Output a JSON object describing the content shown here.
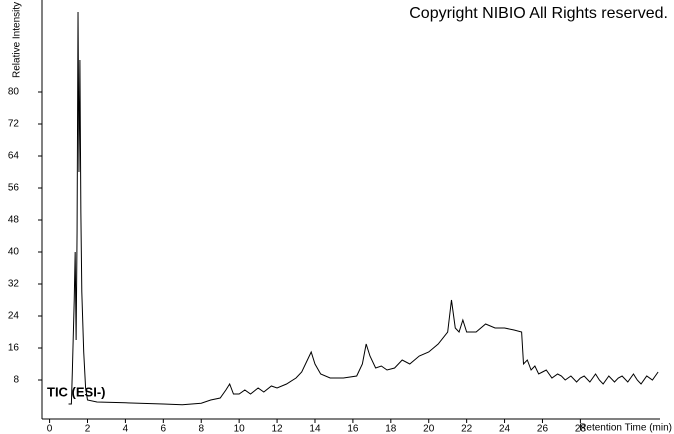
{
  "chart_data": {
    "type": "line",
    "annotation": "TIC (ESI-)",
    "copyright": "Copyright NIBIO All Rights reserved.",
    "xlabel": "Retention Time (min)",
    "ylabel": "Relative Intensity",
    "color": "#000000",
    "xlim": [
      -0.4,
      32.2
    ],
    "ylim": [
      -1.75,
      101.75
    ],
    "xticks": [
      0,
      2,
      4,
      6,
      8,
      10,
      12,
      14,
      16,
      18,
      20,
      22,
      24,
      26,
      28
    ],
    "yticks": [
      8,
      16,
      24,
      32,
      40,
      48,
      56,
      64,
      72,
      80
    ],
    "x": [
      1.0,
      1.15,
      1.2,
      1.3,
      1.35,
      1.4,
      1.45,
      1.5,
      1.55,
      1.6,
      1.65,
      1.7,
      1.8,
      1.9,
      2.0,
      2.5,
      4,
      6,
      7,
      8,
      8.5,
      9,
      9.3,
      9.5,
      9.7,
      10,
      10.3,
      10.6,
      11,
      11.3,
      11.7,
      12,
      12.5,
      13,
      13.3,
      13.6,
      13.8,
      14,
      14.3,
      14.8,
      15.5,
      16.2,
      16.5,
      16.7,
      16.9,
      17.2,
      17.5,
      17.8,
      18.2,
      18.6,
      19,
      19.5,
      20,
      20.5,
      21,
      21.2,
      21.4,
      21.6,
      21.8,
      22,
      22.5,
      23,
      23.5,
      24,
      24.5,
      24.9,
      25.0,
      25.2,
      25.4,
      25.6,
      25.8,
      26.0,
      26.2,
      26.5,
      26.8,
      27.0,
      27.2,
      27.5,
      27.8,
      28.0,
      28.2,
      28.5,
      28.8,
      29.0,
      29.2,
      29.5,
      29.8,
      30.0,
      30.2,
      30.5,
      30.8,
      31.0,
      31.2,
      31.5,
      31.8,
      32.1
    ],
    "values": [
      2,
      2,
      10,
      28,
      40,
      18,
      45,
      100,
      60,
      88,
      50,
      30,
      15,
      6,
      3,
      2.5,
      2.3,
      2,
      1.8,
      2.2,
      3,
      3.5,
      5.5,
      7,
      4.5,
      4.5,
      5.5,
      4.5,
      6,
      5,
      6.5,
      6,
      7,
      8.5,
      10,
      13,
      15,
      12,
      9.5,
      8.5,
      8.5,
      9,
      12,
      17,
      14,
      11,
      11.5,
      10.5,
      11,
      13,
      12,
      14,
      15,
      17,
      20,
      28,
      21,
      20,
      23,
      20,
      20,
      22,
      21,
      21,
      20.5,
      20,
      12,
      13,
      10.5,
      11.5,
      9.5,
      10,
      10.5,
      8.5,
      9.5,
      9,
      8,
      9,
      7.5,
      8.5,
      9,
      7.5,
      9.5,
      8,
      7,
      9,
      7.5,
      8.5,
      9,
      7.5,
      9.5,
      8,
      7,
      9,
      8,
      10
    ]
  }
}
